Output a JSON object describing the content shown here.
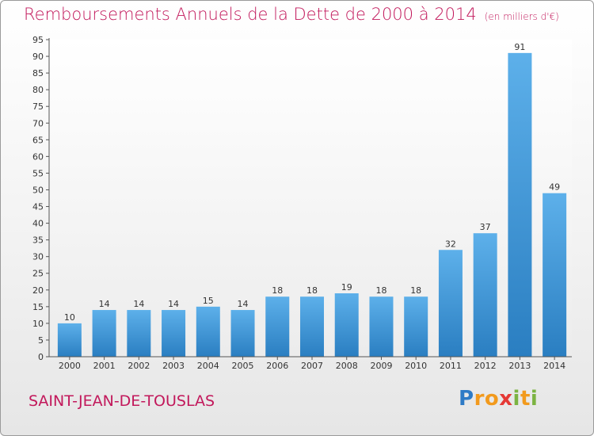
{
  "title": "Remboursements Annuels de la Dette de 2000 à 2014",
  "subtitle": "(en milliers d'€)",
  "commune": "SAINT-JEAN-DE-TOUSLAS",
  "logo": {
    "text": "Proxiti",
    "letters": [
      {
        "ch": "P",
        "color": "#2e7bc6"
      },
      {
        "ch": "r",
        "color": "#f29a1d"
      },
      {
        "ch": "o",
        "color": "#f29a1d"
      },
      {
        "ch": "x",
        "color": "#e53935"
      },
      {
        "ch": "i",
        "color": "#7cb342"
      },
      {
        "ch": "t",
        "color": "#f29a1d"
      },
      {
        "ch": "i",
        "color": "#7cb342"
      }
    ]
  },
  "colors": {
    "title": "#c2185b",
    "bar_top": "#5db0ea",
    "bar_bottom": "#2a7ec1"
  },
  "chart_data": {
    "type": "bar",
    "categories": [
      "2000",
      "2001",
      "2002",
      "2003",
      "2004",
      "2005",
      "2006",
      "2007",
      "2008",
      "2009",
      "2010",
      "2011",
      "2012",
      "2013",
      "2014"
    ],
    "values": [
      10,
      14,
      14,
      14,
      15,
      14,
      18,
      18,
      19,
      18,
      18,
      32,
      37,
      91,
      49
    ],
    "ylim": [
      0,
      95
    ],
    "yticks": [
      0,
      5,
      10,
      15,
      20,
      25,
      30,
      35,
      40,
      45,
      50,
      55,
      60,
      65,
      70,
      75,
      80,
      85,
      90,
      95
    ],
    "grid": false,
    "legend": "none"
  }
}
